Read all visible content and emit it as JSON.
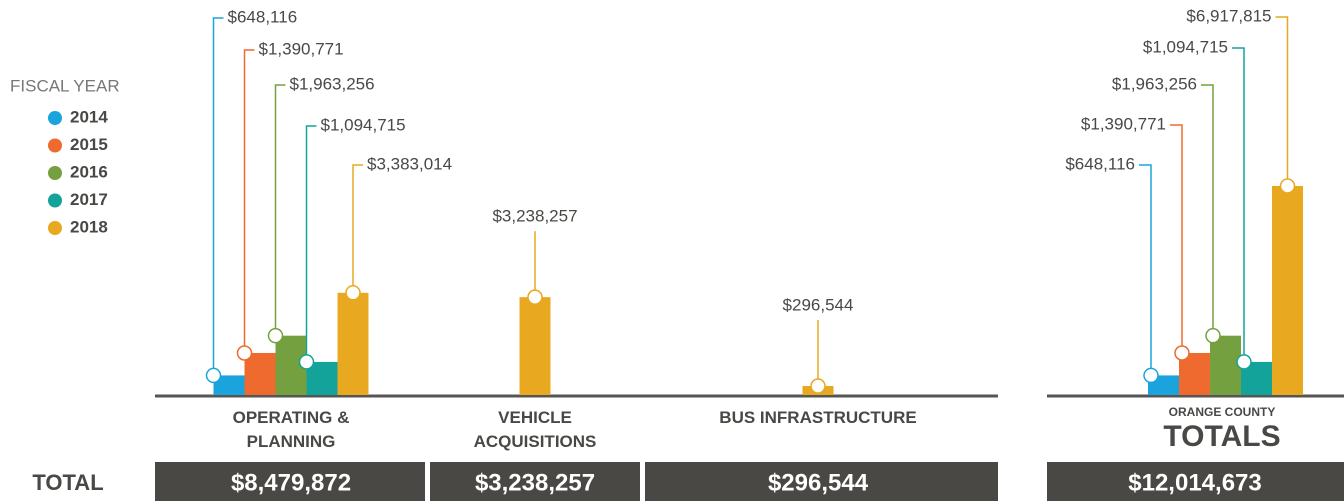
{
  "chart_data": {
    "type": "bar",
    "legend_title": "FISCAL YEAR",
    "categories": [
      "OPERATING & PLANNING",
      "VEHICLE ACQUISITIONS",
      "BUS INFRASTRUCTURE"
    ],
    "series": [
      {
        "name": "2014",
        "color": "#1ba3dd",
        "values": [
          648116,
          null,
          null
        ],
        "value_labels": [
          "$648,116",
          null,
          null
        ]
      },
      {
        "name": "2015",
        "color": "#ef6a2e",
        "values": [
          1390771,
          null,
          null
        ],
        "value_labels": [
          "$1,390,771",
          null,
          null
        ]
      },
      {
        "name": "2016",
        "color": "#74a03f",
        "values": [
          1963256,
          null,
          null
        ],
        "value_labels": [
          "$1,963,256",
          null,
          null
        ]
      },
      {
        "name": "2017",
        "color": "#13a39a",
        "values": [
          1094715,
          null,
          null
        ],
        "value_labels": [
          "$1,094,715",
          null,
          null
        ]
      },
      {
        "name": "2018",
        "color": "#e8a820",
        "values": [
          3383014,
          3238257,
          296544
        ],
        "value_labels": [
          "$3,383,014",
          "$3,238,257",
          "$296,544"
        ]
      }
    ],
    "category_totals_title": "TOTAL",
    "category_totals": [
      8479872,
      3238257,
      296544
    ],
    "category_totals_labels": [
      "$8,479,872",
      "$3,238,257",
      "$296,544"
    ],
    "totals": {
      "title_top": "ORANGE COUNTY",
      "title": "TOTALS",
      "values": [
        648116,
        1390771,
        1963256,
        1094715,
        6917815
      ],
      "value_labels": [
        "$648,116",
        "$1,390,771",
        "$1,963,256",
        "$1,094,715",
        "$6,917,815"
      ],
      "total": 12014673,
      "total_label": "$12,014,673"
    }
  }
}
